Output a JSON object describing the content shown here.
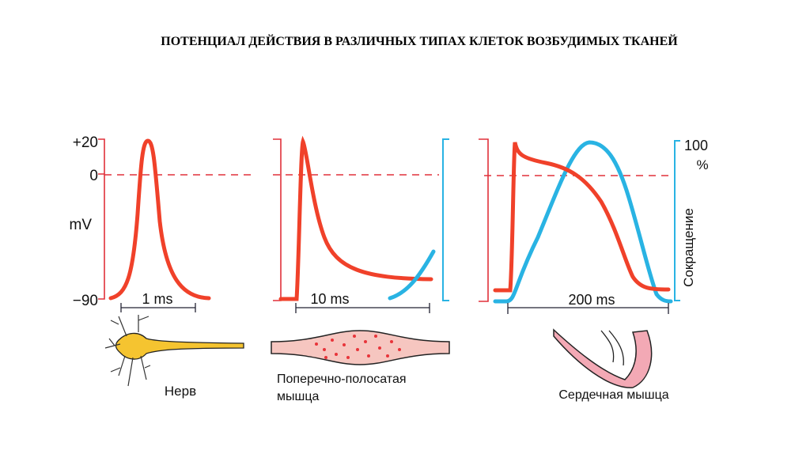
{
  "title": "ПОТЕНЦИАЛ ДЕЙСТВИЯ В РАЗЛИЧНЫХ ТИПАХ КЛЕТОК ВОЗБУДИМЫХ ТКАНЕЙ",
  "axis": {
    "top": "+20",
    "zero": "0",
    "unit": "mV",
    "bottom": "−90"
  },
  "panels": [
    {
      "scale": "1 ms",
      "caption": "Нерв"
    },
    {
      "scale": "10 ms",
      "caption_line1": "Поперечно-полосатая",
      "caption_line2": "мышца"
    },
    {
      "scale": "200 ms",
      "caption": "Сердечная мышца",
      "contraction_top": "100",
      "contraction_unit": "%",
      "contraction_label": "Сокращение"
    }
  ],
  "colors": {
    "potential": "#f0412a",
    "contraction": "#29b3e3",
    "axis": "#e0303a"
  }
}
